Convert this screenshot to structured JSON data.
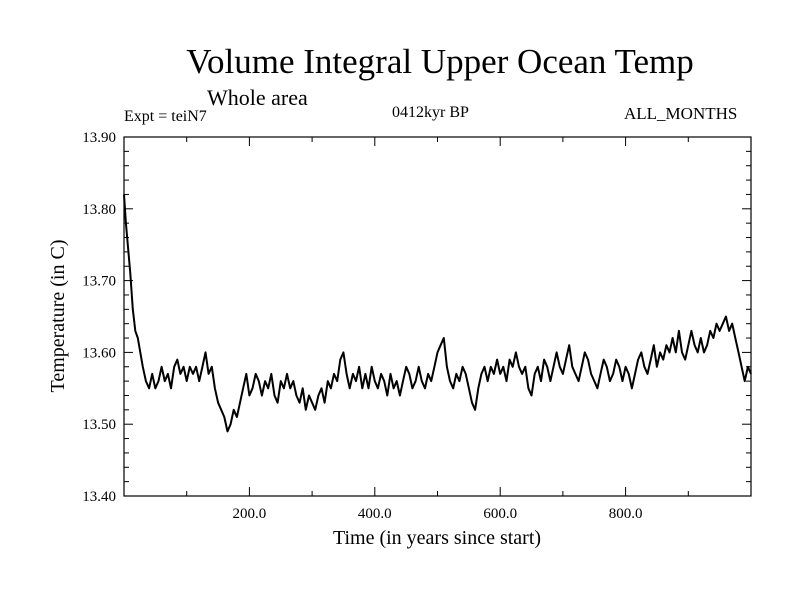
{
  "chart_data": {
    "type": "line",
    "title": "Volume Integral Upper Ocean Temp",
    "subtitle": "Whole area",
    "annotations": {
      "experiment": "Expt = teiN7",
      "period": "0412kyr BP",
      "months": "ALL_MONTHS"
    },
    "xlabel": "Time (in years since start)",
    "ylabel": "Temperature (in C)",
    "xlim": [
      0,
      1000
    ],
    "ylim": [
      13.4,
      13.9
    ],
    "x_ticks": [
      200,
      400,
      600,
      800
    ],
    "x_tick_labels": [
      "200.0",
      "400.0",
      "600.0",
      "800.0"
    ],
    "y_ticks": [
      13.4,
      13.5,
      13.6,
      13.7,
      13.8,
      13.9
    ],
    "y_tick_labels": [
      "13.40",
      "13.50",
      "13.60",
      "13.70",
      "13.80",
      "13.90"
    ],
    "grid": false,
    "series": [
      {
        "name": "teiN7",
        "color": "#000000",
        "points": [
          [
            0,
            13.82
          ],
          [
            3,
            13.78
          ],
          [
            6,
            13.75
          ],
          [
            10,
            13.71
          ],
          [
            14,
            13.66
          ],
          [
            18,
            13.63
          ],
          [
            22,
            13.62
          ],
          [
            26,
            13.6
          ],
          [
            30,
            13.58
          ],
          [
            35,
            13.56
          ],
          [
            40,
            13.55
          ],
          [
            45,
            13.57
          ],
          [
            50,
            13.55
          ],
          [
            55,
            13.56
          ],
          [
            60,
            13.58
          ],
          [
            65,
            13.56
          ],
          [
            70,
            13.57
          ],
          [
            75,
            13.55
          ],
          [
            80,
            13.58
          ],
          [
            85,
            13.59
          ],
          [
            90,
            13.57
          ],
          [
            95,
            13.58
          ],
          [
            100,
            13.56
          ],
          [
            105,
            13.58
          ],
          [
            110,
            13.57
          ],
          [
            115,
            13.58
          ],
          [
            120,
            13.56
          ],
          [
            125,
            13.58
          ],
          [
            130,
            13.6
          ],
          [
            135,
            13.57
          ],
          [
            140,
            13.58
          ],
          [
            145,
            13.55
          ],
          [
            150,
            13.53
          ],
          [
            155,
            13.52
          ],
          [
            160,
            13.51
          ],
          [
            165,
            13.49
          ],
          [
            170,
            13.5
          ],
          [
            175,
            13.52
          ],
          [
            180,
            13.51
          ],
          [
            185,
            13.53
          ],
          [
            190,
            13.55
          ],
          [
            195,
            13.57
          ],
          [
            200,
            13.54
          ],
          [
            205,
            13.55
          ],
          [
            210,
            13.57
          ],
          [
            215,
            13.56
          ],
          [
            220,
            13.54
          ],
          [
            225,
            13.56
          ],
          [
            230,
            13.55
          ],
          [
            235,
            13.57
          ],
          [
            240,
            13.54
          ],
          [
            245,
            13.53
          ],
          [
            250,
            13.56
          ],
          [
            255,
            13.55
          ],
          [
            260,
            13.57
          ],
          [
            265,
            13.55
          ],
          [
            270,
            13.56
          ],
          [
            275,
            13.54
          ],
          [
            280,
            13.53
          ],
          [
            285,
            13.55
          ],
          [
            290,
            13.52
          ],
          [
            295,
            13.54
          ],
          [
            300,
            13.53
          ],
          [
            305,
            13.52
          ],
          [
            310,
            13.54
          ],
          [
            315,
            13.55
          ],
          [
            320,
            13.53
          ],
          [
            325,
            13.56
          ],
          [
            330,
            13.55
          ],
          [
            335,
            13.57
          ],
          [
            340,
            13.56
          ],
          [
            345,
            13.59
          ],
          [
            350,
            13.6
          ],
          [
            355,
            13.57
          ],
          [
            360,
            13.55
          ],
          [
            365,
            13.57
          ],
          [
            370,
            13.56
          ],
          [
            375,
            13.58
          ],
          [
            380,
            13.55
          ],
          [
            385,
            13.57
          ],
          [
            390,
            13.55
          ],
          [
            395,
            13.58
          ],
          [
            400,
            13.56
          ],
          [
            405,
            13.55
          ],
          [
            410,
            13.57
          ],
          [
            415,
            13.56
          ],
          [
            420,
            13.54
          ],
          [
            425,
            13.57
          ],
          [
            430,
            13.55
          ],
          [
            435,
            13.56
          ],
          [
            440,
            13.54
          ],
          [
            445,
            13.56
          ],
          [
            450,
            13.58
          ],
          [
            455,
            13.57
          ],
          [
            460,
            13.55
          ],
          [
            465,
            13.56
          ],
          [
            470,
            13.58
          ],
          [
            475,
            13.56
          ],
          [
            480,
            13.55
          ],
          [
            485,
            13.57
          ],
          [
            490,
            13.56
          ],
          [
            495,
            13.58
          ],
          [
            500,
            13.6
          ],
          [
            505,
            13.61
          ],
          [
            510,
            13.62
          ],
          [
            515,
            13.58
          ],
          [
            520,
            13.56
          ],
          [
            525,
            13.55
          ],
          [
            530,
            13.57
          ],
          [
            535,
            13.56
          ],
          [
            540,
            13.58
          ],
          [
            545,
            13.57
          ],
          [
            550,
            13.55
          ],
          [
            555,
            13.53
          ],
          [
            560,
            13.52
          ],
          [
            565,
            13.55
          ],
          [
            570,
            13.57
          ],
          [
            575,
            13.58
          ],
          [
            580,
            13.56
          ],
          [
            585,
            13.58
          ],
          [
            590,
            13.57
          ],
          [
            595,
            13.59
          ],
          [
            600,
            13.57
          ],
          [
            605,
            13.58
          ],
          [
            610,
            13.56
          ],
          [
            615,
            13.59
          ],
          [
            620,
            13.58
          ],
          [
            625,
            13.6
          ],
          [
            630,
            13.58
          ],
          [
            635,
            13.57
          ],
          [
            640,
            13.58
          ],
          [
            645,
            13.55
          ],
          [
            650,
            13.54
          ],
          [
            655,
            13.57
          ],
          [
            660,
            13.58
          ],
          [
            665,
            13.56
          ],
          [
            670,
            13.59
          ],
          [
            675,
            13.58
          ],
          [
            680,
            13.56
          ],
          [
            685,
            13.58
          ],
          [
            690,
            13.6
          ],
          [
            695,
            13.58
          ],
          [
            700,
            13.57
          ],
          [
            705,
            13.59
          ],
          [
            710,
            13.61
          ],
          [
            715,
            13.58
          ],
          [
            720,
            13.57
          ],
          [
            725,
            13.56
          ],
          [
            730,
            13.58
          ],
          [
            735,
            13.6
          ],
          [
            740,
            13.59
          ],
          [
            745,
            13.57
          ],
          [
            750,
            13.56
          ],
          [
            755,
            13.55
          ],
          [
            760,
            13.57
          ],
          [
            765,
            13.59
          ],
          [
            770,
            13.58
          ],
          [
            775,
            13.56
          ],
          [
            780,
            13.57
          ],
          [
            785,
            13.59
          ],
          [
            790,
            13.58
          ],
          [
            795,
            13.56
          ],
          [
            800,
            13.58
          ],
          [
            805,
            13.57
          ],
          [
            810,
            13.55
          ],
          [
            815,
            13.57
          ],
          [
            820,
            13.59
          ],
          [
            825,
            13.6
          ],
          [
            830,
            13.58
          ],
          [
            835,
            13.57
          ],
          [
            840,
            13.59
          ],
          [
            845,
            13.61
          ],
          [
            850,
            13.58
          ],
          [
            855,
            13.6
          ],
          [
            860,
            13.59
          ],
          [
            865,
            13.61
          ],
          [
            870,
            13.6
          ],
          [
            875,
            13.62
          ],
          [
            880,
            13.6
          ],
          [
            885,
            13.63
          ],
          [
            890,
            13.6
          ],
          [
            895,
            13.59
          ],
          [
            900,
            13.61
          ],
          [
            905,
            13.63
          ],
          [
            910,
            13.61
          ],
          [
            915,
            13.6
          ],
          [
            920,
            13.62
          ],
          [
            925,
            13.6
          ],
          [
            930,
            13.61
          ],
          [
            935,
            13.63
          ],
          [
            940,
            13.62
          ],
          [
            945,
            13.64
          ],
          [
            950,
            13.63
          ],
          [
            955,
            13.64
          ],
          [
            960,
            13.65
          ],
          [
            965,
            13.63
          ],
          [
            970,
            13.64
          ],
          [
            975,
            13.62
          ],
          [
            980,
            13.6
          ],
          [
            985,
            13.58
          ],
          [
            990,
            13.56
          ],
          [
            995,
            13.58
          ],
          [
            1000,
            13.57
          ]
        ]
      }
    ]
  }
}
